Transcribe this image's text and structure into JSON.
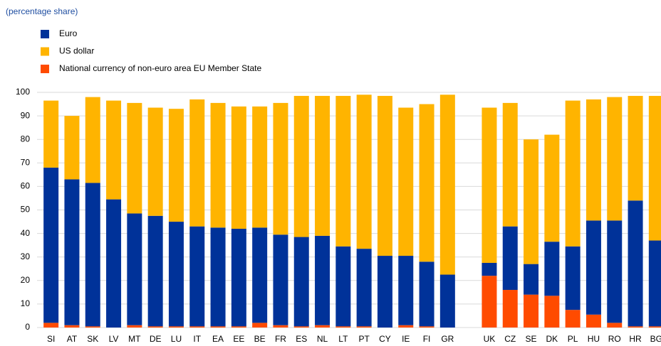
{
  "chart_data": {
    "type": "stacked-bar",
    "subtitle": "(percentage share)",
    "categories": [
      "SI",
      "AT",
      "SK",
      "LV",
      "MT",
      "DE",
      "LU",
      "IT",
      "EA",
      "EE",
      "BE",
      "FR",
      "ES",
      "NL",
      "LT",
      "PT",
      "CY",
      "IE",
      "FI",
      "GR",
      null,
      "UK",
      "CZ",
      "SE",
      "DK",
      "PL",
      "HU",
      "RO",
      "HR",
      "BG"
    ],
    "series": [
      {
        "name": "Euro",
        "color": "#003299",
        "values": [
          66,
          62,
          61,
          54.5,
          47.5,
          47,
          44.5,
          42.5,
          42,
          41.5,
          40.5,
          38.5,
          38,
          38,
          34,
          33,
          30.5,
          29.5,
          27.5,
          22.5,
          null,
          5.5,
          27,
          13,
          23,
          27,
          40,
          43.5,
          53.5,
          36.5
        ]
      },
      {
        "name": "US dollar",
        "color": "#ffb400",
        "values": [
          28.5,
          27,
          36.5,
          42,
          47,
          46,
          48,
          54,
          53,
          52,
          51.5,
          56,
          60,
          59.5,
          64,
          65.5,
          68,
          63,
          67,
          76.5,
          null,
          66,
          52.5,
          53,
          45.5,
          62,
          51.5,
          52.5,
          44.5,
          61.5
        ]
      },
      {
        "name": "National currency of non-euro  area EU Member State",
        "color": "#ff4b00",
        "values": [
          2,
          1,
          0.5,
          0,
          1,
          0.5,
          0.5,
          0.5,
          0.5,
          0.5,
          2,
          1,
          0.5,
          1,
          0.5,
          0.5,
          0,
          1,
          0.5,
          0,
          null,
          22,
          16,
          14,
          13.5,
          7.5,
          5.5,
          2,
          0.5,
          0.5
        ]
      }
    ],
    "ylim": [
      0,
      100
    ],
    "yticks": [
      0,
      10,
      20,
      30,
      40,
      50,
      60,
      70,
      80,
      90,
      100
    ],
    "grid": true
  }
}
